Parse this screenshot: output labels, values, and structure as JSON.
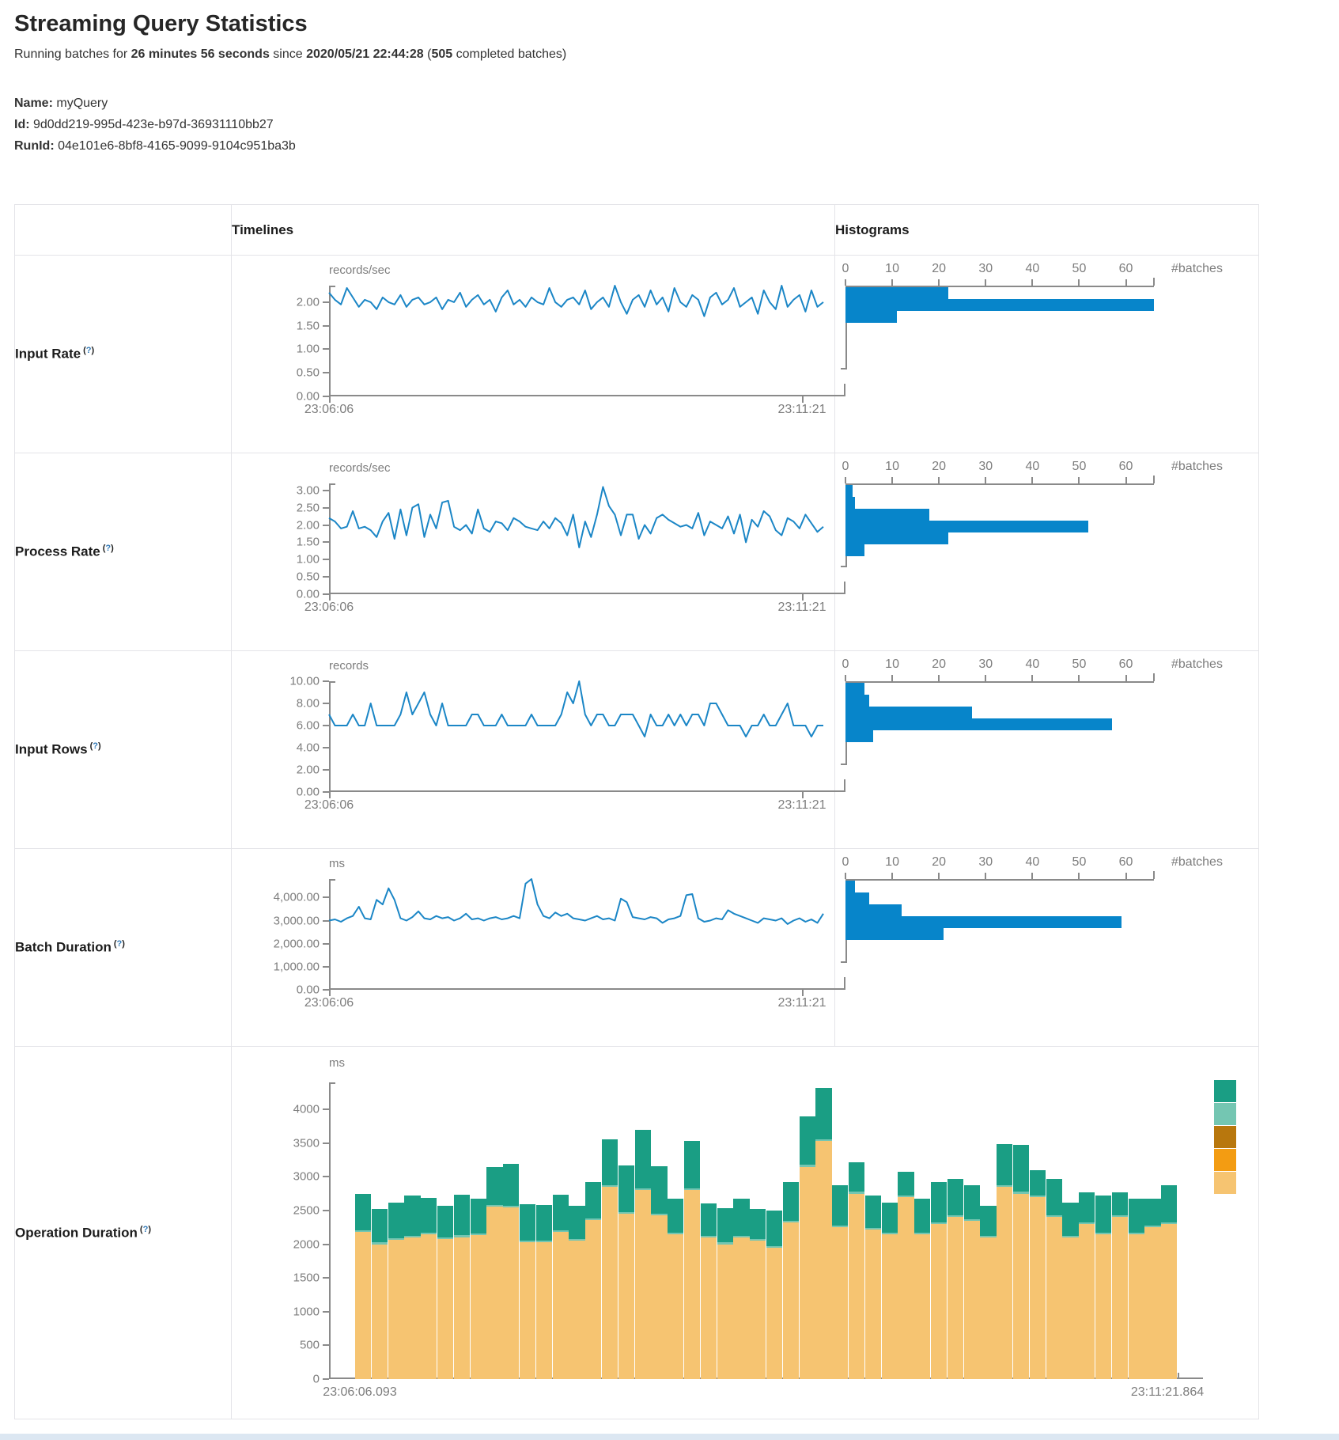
{
  "page": {
    "title": "Streaming Query Statistics",
    "batches_prefix": "Running batches for ",
    "duration": "26 minutes 56 seconds",
    "since_text": " since ",
    "start_time": "2020/05/21 22:44:28",
    "paren_open": " (",
    "completed_batches": "505",
    "batches_suffix": " completed batches)",
    "name_label": "Name:",
    "name_value": "myQuery",
    "id_label": "Id:",
    "id_value": "9d0dd219-995d-423e-b97d-36931110bb27",
    "runid_label": "RunId:",
    "runid_value": "04e101e6-8bf8-4165-9099-9104c951ba3b"
  },
  "table": {
    "col_timelines": "Timelines",
    "col_histograms": "Histograms",
    "help_open": "(",
    "help_q": "?",
    "help_close": ")"
  },
  "colors": {
    "line_blue": "#1b86c6",
    "bar_blue": "#0785ca",
    "axis_gray": "#8a8a8a",
    "tick_text": "#7d7d7d",
    "border": "#e4e4e8",
    "help_blue": "#337ab7",
    "op_green": "#1a9e84",
    "op_light_teal": "#74c6b2",
    "op_dark_orange": "#b8770d",
    "op_orange": "#f39c12",
    "op_tan": "#f6c471",
    "bottom_band": "#dce7f2"
  },
  "rows": [
    {
      "label": "Input Rate",
      "timeline": 0,
      "histogram": 1
    },
    {
      "label": "Process Rate",
      "timeline": 2,
      "histogram": 3
    },
    {
      "label": "Input Rows",
      "timeline": 4,
      "histogram": 5
    },
    {
      "label": "Batch Duration",
      "timeline": 6,
      "histogram": 7
    },
    {
      "label": "Operation Duration",
      "operation": 8
    }
  ],
  "chart_data": [
    {
      "type": "line",
      "name": "input-rate-timeline",
      "title": "records/sec",
      "x_start_label": "23:06:06",
      "x_end_label": "23:11:21",
      "ymax": 2.35,
      "grid": false,
      "yticks": [
        {
          "v": 2,
          "label": "2.00"
        },
        {
          "v": 1.5,
          "label": "1.50"
        },
        {
          "v": 1,
          "label": "1.00"
        },
        {
          "v": 0.5,
          "label": "0.50"
        },
        {
          "v": 0,
          "label": "0.00"
        }
      ],
      "values": [
        2.2,
        2.05,
        1.95,
        2.3,
        2.1,
        1.9,
        2.05,
        2.0,
        1.85,
        2.1,
        2.0,
        1.95,
        2.15,
        1.9,
        2.05,
        2.1,
        1.95,
        2.0,
        2.1,
        1.85,
        2.05,
        2.0,
        2.2,
        1.9,
        2.05,
        2.15,
        1.95,
        2.05,
        1.8,
        2.1,
        2.25,
        1.95,
        2.05,
        1.9,
        2.1,
        2.0,
        1.95,
        2.3,
        2.0,
        1.9,
        2.05,
        2.1,
        1.95,
        2.25,
        1.85,
        2.0,
        2.1,
        1.9,
        2.35,
        2.0,
        1.75,
        2.05,
        2.15,
        1.9,
        2.25,
        1.95,
        2.1,
        1.8,
        2.3,
        2.0,
        1.9,
        2.15,
        2.05,
        1.7,
        2.1,
        2.2,
        1.95,
        2.05,
        2.3,
        1.9,
        2.0,
        2.1,
        1.75,
        2.25,
        2.0,
        1.85,
        2.35,
        1.9,
        2.05,
        2.15,
        1.8,
        2.25,
        1.9,
        2.0
      ]
    },
    {
      "type": "bar",
      "name": "input-rate-histogram",
      "orientation": "horizontal",
      "xlabel": "#batches",
      "xticks": [
        0,
        10,
        20,
        30,
        40,
        50,
        60
      ],
      "axis_max": 66,
      "values": [
        22,
        66,
        11
      ]
    },
    {
      "type": "line",
      "name": "process-rate-timeline",
      "title": "records/sec",
      "x_start_label": "23:06:06",
      "x_end_label": "23:11:21",
      "ymax": 3.2,
      "grid": false,
      "yticks": [
        {
          "v": 3,
          "label": "3.00"
        },
        {
          "v": 2.5,
          "label": "2.50"
        },
        {
          "v": 2,
          "label": "2.00"
        },
        {
          "v": 1.5,
          "label": "1.50"
        },
        {
          "v": 1,
          "label": "1.00"
        },
        {
          "v": 0.5,
          "label": "0.50"
        },
        {
          "v": 0,
          "label": "0.00"
        }
      ],
      "values": [
        2.2,
        2.1,
        1.9,
        1.95,
        2.4,
        1.9,
        1.95,
        1.85,
        1.65,
        2.1,
        2.35,
        1.6,
        2.45,
        1.7,
        2.5,
        2.6,
        1.65,
        2.3,
        1.9,
        2.65,
        2.7,
        1.95,
        1.85,
        2.0,
        1.75,
        2.45,
        1.9,
        1.8,
        2.1,
        2.05,
        1.85,
        2.2,
        2.1,
        1.95,
        1.9,
        1.85,
        2.1,
        1.9,
        2.2,
        2.05,
        1.7,
        2.3,
        1.35,
        2.1,
        1.65,
        2.3,
        3.1,
        2.55,
        2.3,
        1.7,
        2.3,
        2.3,
        1.6,
        2.0,
        1.75,
        2.2,
        2.3,
        2.15,
        2.05,
        1.95,
        2.0,
        1.9,
        2.35,
        1.7,
        2.1,
        2.0,
        1.9,
        2.25,
        1.75,
        2.3,
        1.5,
        2.15,
        1.95,
        2.4,
        2.25,
        1.85,
        1.7,
        2.2,
        2.1,
        1.9,
        2.3,
        2.05,
        1.8,
        1.95
      ]
    },
    {
      "type": "bar",
      "name": "process-rate-histogram",
      "orientation": "horizontal",
      "xlabel": "#batches",
      "xticks": [
        0,
        10,
        20,
        30,
        40,
        50,
        60
      ],
      "axis_max": 66,
      "values": [
        1.5,
        2,
        18,
        52,
        22,
        4
      ]
    },
    {
      "type": "line",
      "name": "input-rows-timeline",
      "title": "records",
      "x_start_label": "23:06:06",
      "x_end_label": "23:11:21",
      "ymax": 10,
      "grid": false,
      "yticks": [
        {
          "v": 10,
          "label": "10.00"
        },
        {
          "v": 8,
          "label": "8.00"
        },
        {
          "v": 6,
          "label": "6.00"
        },
        {
          "v": 4,
          "label": "4.00"
        },
        {
          "v": 2,
          "label": "2.00"
        },
        {
          "v": 0,
          "label": "0.00"
        }
      ],
      "values": [
        7,
        6,
        6,
        6,
        7,
        6,
        6,
        8,
        6,
        6,
        6,
        6,
        7,
        9,
        7,
        8,
        9,
        7,
        6,
        8,
        6,
        6,
        6,
        6,
        7,
        7,
        6,
        6,
        6,
        7,
        6,
        6,
        6,
        6,
        7,
        6,
        6,
        6,
        6,
        7,
        9,
        8,
        10,
        7,
        6,
        7,
        7,
        6,
        6,
        7,
        7,
        7,
        6,
        5,
        7,
        6,
        6,
        7,
        6,
        7,
        6,
        7,
        7,
        6,
        8,
        8,
        7,
        6,
        6,
        6,
        5,
        6,
        6,
        7,
        6,
        6,
        7,
        8,
        6,
        6,
        6,
        5,
        6,
        6
      ]
    },
    {
      "type": "bar",
      "name": "input-rows-histogram",
      "orientation": "horizontal",
      "xlabel": "#batches",
      "xticks": [
        0,
        10,
        20,
        30,
        40,
        50,
        60
      ],
      "axis_max": 66,
      "values": [
        4,
        5,
        27,
        57,
        6
      ]
    },
    {
      "type": "line",
      "name": "batch-duration-timeline",
      "title": "ms",
      "x_start_label": "23:06:06",
      "x_end_label": "23:11:21",
      "ymax": 4800,
      "grid": false,
      "yticks": [
        {
          "v": 4000,
          "label": "4,000.00"
        },
        {
          "v": 3000,
          "label": "3,000.00"
        },
        {
          "v": 2000,
          "label": "2,000.00"
        },
        {
          "v": 1000,
          "label": "1,000.00"
        },
        {
          "v": 0,
          "label": "0.00"
        }
      ],
      "values": [
        3000,
        3050,
        2950,
        3100,
        3200,
        3600,
        3100,
        3050,
        3900,
        3700,
        4400,
        3900,
        3100,
        3000,
        3150,
        3400,
        3100,
        3050,
        3200,
        3100,
        3150,
        3000,
        3100,
        3300,
        3050,
        3100,
        3000,
        3100,
        3150,
        3050,
        3100,
        3200,
        3100,
        4600,
        4800,
        3700,
        3200,
        3100,
        3350,
        3200,
        3300,
        3100,
        3050,
        3000,
        3100,
        3200,
        3050,
        3100,
        3000,
        3950,
        3800,
        3150,
        3100,
        3050,
        3150,
        3100,
        2900,
        3050,
        3100,
        3200,
        4100,
        4150,
        3100,
        2950,
        3000,
        3100,
        3050,
        3450,
        3300,
        3200,
        3100,
        3000,
        2900,
        3100,
        3050,
        3000,
        3100,
        2850,
        3000,
        3100,
        2950,
        3050,
        2900,
        3300
      ]
    },
    {
      "type": "bar",
      "name": "batch-duration-histogram",
      "orientation": "horizontal",
      "xlabel": "#batches",
      "xticks": [
        0,
        10,
        20,
        30,
        40,
        50,
        60
      ],
      "axis_max": 66,
      "values": [
        2,
        5,
        12,
        59,
        21
      ]
    },
    {
      "type": "stacked-bar",
      "name": "operation-duration-chart",
      "title": "ms",
      "x_start_label": "23:06:06.093",
      "x_end_label": "23:11:21.864",
      "ymax": 4400,
      "grid": false,
      "yticks": [
        {
          "v": 4000,
          "label": "4000"
        },
        {
          "v": 3500,
          "label": "3500"
        },
        {
          "v": 3000,
          "label": "3000"
        },
        {
          "v": 2500,
          "label": "2500"
        },
        {
          "v": 2000,
          "label": "2000"
        },
        {
          "v": 1500,
          "label": "1500"
        },
        {
          "v": 1000,
          "label": "1000"
        },
        {
          "v": 500,
          "label": "500"
        },
        {
          "v": 0,
          "label": "0"
        }
      ],
      "legend_colors": [
        "#1a9e84",
        "#74c6b2",
        "#b8770d",
        "#f39c12",
        "#f6c471"
      ],
      "series": [
        {
          "name": "bottom",
          "color": "#f6c471",
          "values": [
            2180,
            2000,
            2060,
            2100,
            2150,
            2080,
            2105,
            2130,
            2560,
            2550,
            2030,
            2030,
            2180,
            2050,
            2360,
            2850,
            2450,
            2800,
            2430,
            2150,
            2800,
            2100,
            2000,
            2100,
            2050,
            1950,
            2320,
            3150,
            3530,
            2250,
            2750,
            2220,
            2150,
            2700,
            2150,
            2300,
            2400,
            2350,
            2100,
            2850,
            2750,
            2700,
            2400,
            2100,
            2300,
            2150,
            2400,
            2150,
            2250,
            2300
          ]
        },
        {
          "name": "middle",
          "color": "#74c6b2",
          "value_each": 25
        },
        {
          "name": "top",
          "color": "#1a9e84",
          "values": [
            545,
            495,
            535,
            595,
            515,
            465,
            605,
            515,
            555,
            615,
            535,
            525,
            525,
            495,
            535,
            675,
            695,
            875,
            705,
            495,
            705,
            475,
            515,
            555,
            445,
            525,
            575,
            715,
            765,
            595,
            445,
            475,
            445,
            345,
            495,
            595,
            545,
            495,
            445,
            615,
            695,
            375,
            545,
            495,
            445,
            545,
            345,
            495,
            395,
            545
          ]
        }
      ]
    }
  ]
}
